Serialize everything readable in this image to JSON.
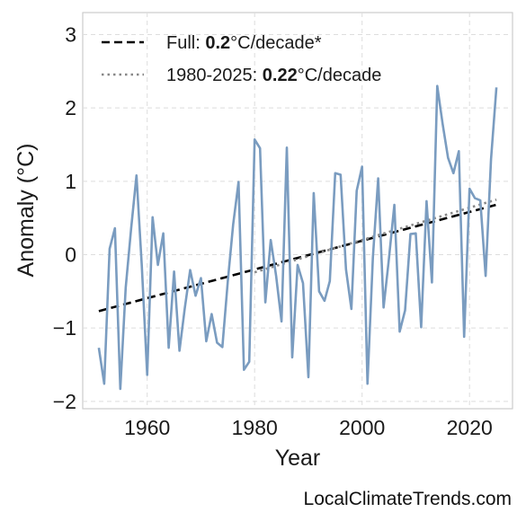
{
  "chart_data": {
    "type": "line",
    "title": "",
    "xlabel": "Year",
    "ylabel": "Anomaly (°C)",
    "xlim": [
      1948,
      2028
    ],
    "ylim": [
      -2.1,
      3.3
    ],
    "x_ticks": [
      1960,
      1980,
      2000,
      2020
    ],
    "y_ticks": [
      -2,
      -1,
      0,
      1,
      2,
      3
    ],
    "x_tick_labels": [
      "1960",
      "1980",
      "2000",
      "2020"
    ],
    "y_tick_labels": [
      "−2",
      "−1",
      "0",
      "1",
      "2",
      "3"
    ],
    "grid": true,
    "legend_position": "top-left",
    "series": [
      {
        "color": "#7a9cc0",
        "x": [
          1951,
          1952,
          1953,
          1954,
          1955,
          1956,
          1957,
          1958,
          1959,
          1960,
          1961,
          1962,
          1963,
          1964,
          1965,
          1966,
          1967,
          1968,
          1969,
          1970,
          1971,
          1972,
          1973,
          1974,
          1975,
          1976,
          1977,
          1978,
          1979,
          1980,
          1981,
          1982,
          1983,
          1984,
          1985,
          1986,
          1987,
          1988,
          1989,
          1990,
          1991,
          1992,
          1993,
          1994,
          1995,
          1996,
          1997,
          1998,
          1999,
          2000,
          2001,
          2002,
          2003,
          2004,
          2005,
          2006,
          2007,
          2008,
          2009,
          2010,
          2011,
          2012,
          2013,
          2014,
          2015,
          2016,
          2017,
          2018,
          2019,
          2020,
          2021,
          2022,
          2023,
          2024,
          2025
        ],
        "values": [
          -1.27,
          -1.76,
          0.08,
          0.36,
          -1.83,
          -0.45,
          0.35,
          1.08,
          -0.15,
          -1.64,
          0.51,
          -0.14,
          0.29,
          -1.27,
          -0.23,
          -1.31,
          -0.73,
          -0.21,
          -0.56,
          -0.32,
          -1.18,
          -0.81,
          -1.2,
          -1.26,
          -0.37,
          0.41,
          0.99,
          -1.57,
          -1.46,
          1.57,
          1.45,
          -0.65,
          0.2,
          -0.29,
          -0.91,
          1.46,
          -1.4,
          -0.14,
          -0.39,
          -1.67,
          0.84,
          -0.5,
          -0.63,
          -0.36,
          1.11,
          1.09,
          -0.2,
          -0.74,
          0.87,
          1.2,
          -1.76,
          -0.04,
          1.04,
          -0.72,
          -0.05,
          0.68,
          -1.05,
          -0.76,
          0.28,
          0.29,
          -0.99,
          0.73,
          -0.38,
          2.3,
          1.78,
          1.32,
          1.11,
          1.41,
          -1.12,
          0.9,
          0.77,
          0.74,
          -0.29,
          1.3,
          2.28
        ]
      }
    ],
    "trendlines": [
      {
        "label": "Full",
        "color": "#000000",
        "dash": "dashed",
        "slope_per_decade": "0.2",
        "unit": "°C/decade*",
        "x": [
          1951,
          2025
        ],
        "y": [
          -0.77,
          0.68
        ]
      },
      {
        "label": "1980-2025",
        "color": "#888888",
        "dash": "dotted",
        "slope_per_decade": "0.22",
        "unit": "°C/decade",
        "x": [
          1980,
          2025
        ],
        "y": [
          -0.24,
          0.75
        ]
      }
    ]
  },
  "legend": {
    "full_prefix": "Full: ",
    "full_value": "0.2",
    "full_suffix": "°C/decade*",
    "recent_prefix": "1980-2025: ",
    "recent_value": "0.22",
    "recent_suffix": "°C/decade"
  },
  "footer": "LocalClimateTrends.com"
}
